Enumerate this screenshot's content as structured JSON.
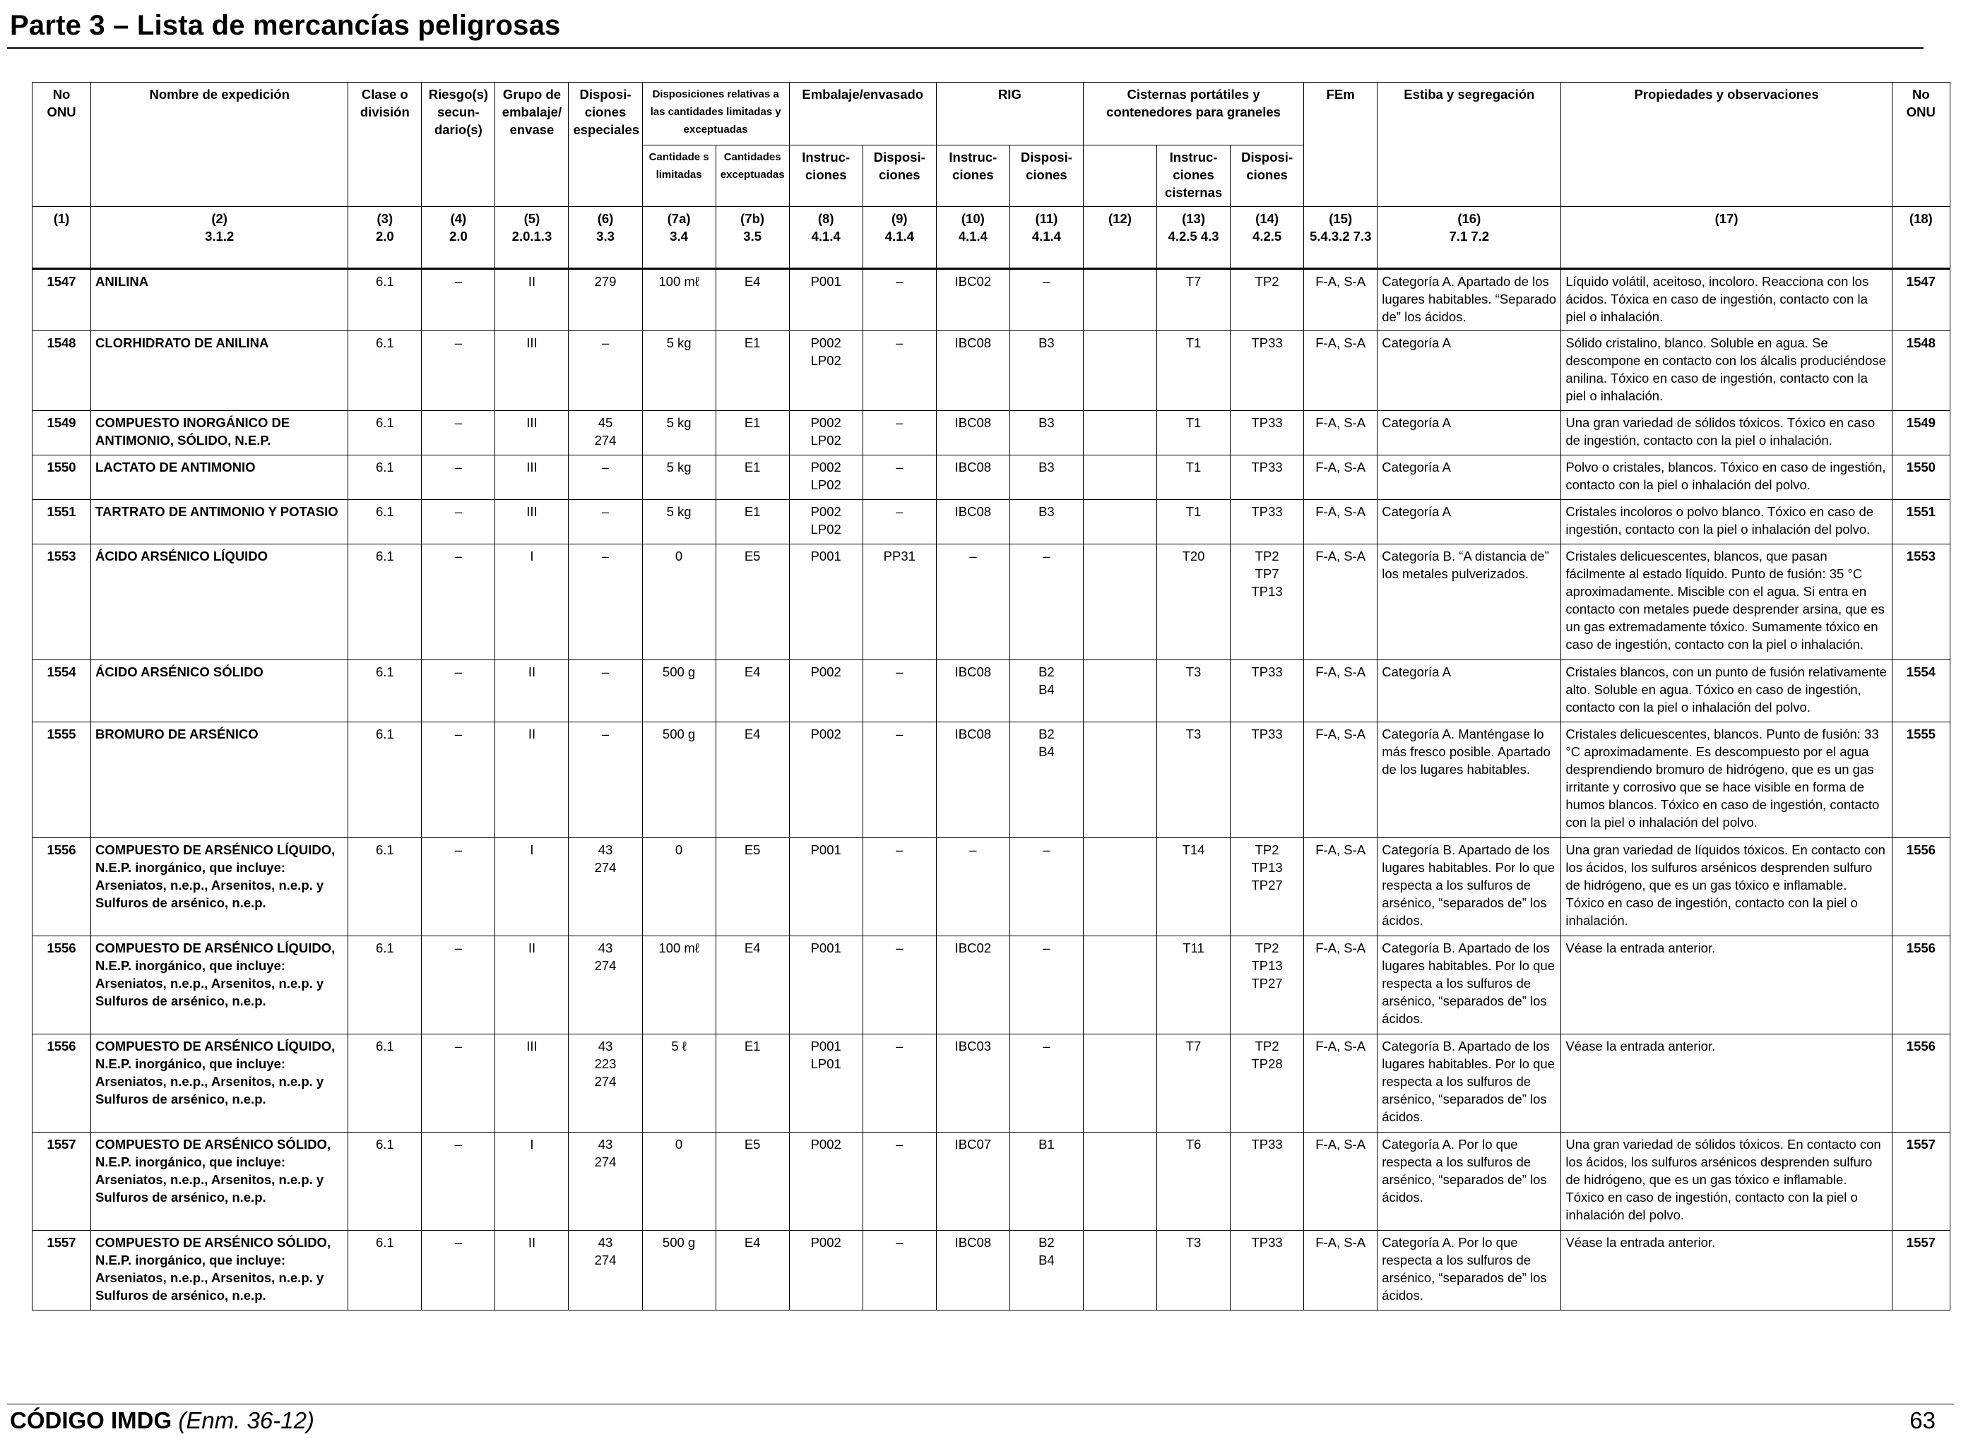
{
  "page": {
    "title": "Parte 3 – Lista de mercancías peligrosas",
    "footer_code": "CÓDIGO IMDG",
    "footer_amend": "(Enm. 36-12)",
    "page_number": "63"
  },
  "headers": {
    "un": "No ONU",
    "name": "Nombre de expedición",
    "class": "Clase o división",
    "subrisk": "Riesgo(s) secun- dario(s)",
    "pg": "Grupo de embalaje/ envase",
    "sp": "Disposi- ciones especiales",
    "limited_group": "Disposiciones relativas a las cantidades limitadas y exceptuadas",
    "limited_qty": "Cantidade s limitadas",
    "excepted_qty": "Cantidades exceptuadas",
    "packing_group": "Embalaje/envasado",
    "packing_instr": "Instruc- ciones",
    "packing_prov": "Disposi- ciones",
    "ibc_group": "RIG",
    "ibc_instr": "Instruc- ciones",
    "ibc_prov": "Disposi- ciones",
    "tank_group": "Cisternas portátiles y contenedores para graneles",
    "tank_instr": "Instruc- ciones cisternas",
    "tank_prov": "Disposi- ciones",
    "ems": "FEm",
    "stowage": "Estiba y segregación",
    "props": "Propiedades y observaciones",
    "un_end": "No ONU",
    "col_numbers": [
      {
        "n": "(1)",
        "ref": ""
      },
      {
        "n": "(2)",
        "ref": "3.1.2"
      },
      {
        "n": "(3)",
        "ref": "2.0"
      },
      {
        "n": "(4)",
        "ref": "2.0"
      },
      {
        "n": "(5)",
        "ref": "2.0.1.3"
      },
      {
        "n": "(6)",
        "ref": "3.3"
      },
      {
        "n": "(7a)",
        "ref": "3.4"
      },
      {
        "n": "(7b)",
        "ref": "3.5"
      },
      {
        "n": "(8)",
        "ref": "4.1.4"
      },
      {
        "n": "(9)",
        "ref": "4.1.4"
      },
      {
        "n": "(10)",
        "ref": "4.1.4"
      },
      {
        "n": "(11)",
        "ref": "4.1.4"
      },
      {
        "n": "(12)",
        "ref": ""
      },
      {
        "n": "(13)",
        "ref": "4.2.5 4.3"
      },
      {
        "n": "(14)",
        "ref": "4.2.5"
      },
      {
        "n": "(15)",
        "ref": "5.4.3.2 7.3"
      },
      {
        "n": "(16)",
        "ref": "7.1 7.2"
      },
      {
        "n": "(17)",
        "ref": ""
      },
      {
        "n": "(18)",
        "ref": ""
      }
    ]
  },
  "rows": [
    {
      "un": "1547",
      "name": "ANILINA",
      "cls": "6.1",
      "sub": "–",
      "pg": "II",
      "sp": "279",
      "lq": "100 mℓ",
      "eq": "E4",
      "pi": "P001",
      "pp": "–",
      "ibc": "IBC02",
      "ibcp": "–",
      "c12": "",
      "tank": "T7",
      "tankp": "TP2",
      "ems": "F-A, S-A",
      "stow": "Categoría A. Apartado de los lugares habitables. “Separado de” los ácidos.",
      "props": "Líquido volátil, aceitoso, incoloro. Reacciona con los ácidos. Tóxica en caso de ingestión, contacto con la piel o inhalación.",
      "un2": "1547",
      "h": "88"
    },
    {
      "un": "1548",
      "name": "CLORHIDRATO DE ANILINA",
      "cls": "6.1",
      "sub": "–",
      "pg": "III",
      "sp": "–",
      "lq": "5 kg",
      "eq": "E1",
      "pi": "P002\nLP02",
      "pp": "–",
      "ibc": "IBC08",
      "ibcp": "B3",
      "c12": "",
      "tank": "T1",
      "tankp": "TP33",
      "ems": "F-A, S-A",
      "stow": "Categoría A",
      "props": "Sólido cristalino, blanco. Soluble en agua. Se descompone en contacto con los álcalis produciéndose anilina. Tóxico en caso de ingestión, contacto con la piel o inhalación.",
      "un2": "1548",
      "h": "113"
    },
    {
      "un": "1549",
      "name": "COMPUESTO INORGÁNICO DE ANTIMONIO, SÓLIDO, N.E.P.",
      "cls": "6.1",
      "sub": "–",
      "pg": "III",
      "sp": "45\n274",
      "lq": "5 kg",
      "eq": "E1",
      "pi": "P002\nLP02",
      "pp": "–",
      "ibc": "IBC08",
      "ibcp": "B3",
      "c12": "",
      "tank": "T1",
      "tankp": "TP33",
      "ems": "F-A, S-A",
      "stow": "Categoría A",
      "props": "Una gran variedad de sólidos tóxicos. Tóxico en caso de ingestión, contacto con la piel o inhalación.",
      "un2": "1549",
      "h": "63"
    },
    {
      "un": "1550",
      "name": "LACTATO DE ANTIMONIO",
      "cls": "6.1",
      "sub": "–",
      "pg": "III",
      "sp": "–",
      "lq": "5 kg",
      "eq": "E1",
      "pi": "P002\nLP02",
      "pp": "–",
      "ibc": "IBC08",
      "ibcp": "B3",
      "c12": "",
      "tank": "T1",
      "tankp": "TP33",
      "ems": "F-A, S-A",
      "stow": "Categoría A",
      "props": "Polvo o cristales, blancos. Tóxico en caso de ingestión, contacto con la piel o inhalación del polvo.",
      "un2": "1550",
      "h": "63"
    },
    {
      "un": "1551",
      "name": "TARTRATO DE ANTIMONIO Y POTASIO",
      "cls": "6.1",
      "sub": "–",
      "pg": "III",
      "sp": "–",
      "lq": "5 kg",
      "eq": "E1",
      "pi": "P002\nLP02",
      "pp": "–",
      "ibc": "IBC08",
      "ibcp": "B3",
      "c12": "",
      "tank": "T1",
      "tankp": "TP33",
      "ems": "F-A, S-A",
      "stow": "Categoría A",
      "props": "Cristales incoloros o polvo blanco. Tóxico en caso de ingestión, contacto con la piel o inhalación del polvo.",
      "un2": "1551",
      "h": "63"
    },
    {
      "un": "1553",
      "name": "ÁCIDO ARSÉNICO LÍQUIDO",
      "cls": "6.1",
      "sub": "–",
      "pg": "I",
      "sp": "–",
      "lq": "0",
      "eq": "E5",
      "pi": "P001",
      "pp": "PP31",
      "ibc": "–",
      "ibcp": "–",
      "c12": "",
      "tank": "T20",
      "tankp": "TP2\nTP7\nTP13",
      "ems": "F-A, S-A",
      "stow": "Categoría B. “A distancia de” los metales pulverizados.",
      "props": "Cristales delicuescentes, blancos, que pasan fácilmente al estado líquido. Punto de fusión: 35 °C aproximadamente. Miscible con el agua. Si entra en contacto con metales puede desprender arsina, que es un gas extremadamente tóxico. Sumamente tóxico en caso de ingestión, contacto con la piel o inhalación.",
      "un2": "1553",
      "h": "164"
    },
    {
      "un": "1554",
      "name": "ÁCIDO ARSÉNICO SÓLIDO",
      "cls": "6.1",
      "sub": "–",
      "pg": "II",
      "sp": "–",
      "lq": "500 g",
      "eq": "E4",
      "pi": "P002",
      "pp": "–",
      "ibc": "IBC08",
      "ibcp": "B2\nB4",
      "c12": "",
      "tank": "T3",
      "tankp": "TP33",
      "ems": "F-A, S-A",
      "stow": "Categoría A",
      "props": "Cristales blancos, con un punto de fusión relativamente alto. Soluble en agua. Tóxico en caso de ingestión, contacto con la piel o inhalación del polvo.",
      "un2": "1554",
      "h": "88"
    },
    {
      "un": "1555",
      "name": "BROMURO DE ARSÉNICO",
      "cls": "6.1",
      "sub": "–",
      "pg": "II",
      "sp": "–",
      "lq": "500 g",
      "eq": "E4",
      "pi": "P002",
      "pp": "–",
      "ibc": "IBC08",
      "ibcp": "B2\nB4",
      "c12": "",
      "tank": "T3",
      "tankp": "TP33",
      "ems": "F-A, S-A",
      "stow": "Categoría A. Manténgase lo más fresco posible. Apartado de los lugares habitables.",
      "props": "Cristales delicuescentes, blancos. Punto de fusión: 33 °C aproximadamente. Es descompuesto por el agua desprendiendo bromuro de hidrógeno, que es un gas irritante y corrosivo que se hace visible en forma de humos blancos. Tóxico en caso de ingestión, contacto con la piel o inhalación del polvo.",
      "un2": "1555",
      "h": "164"
    },
    {
      "un": "1556",
      "name": "COMPUESTO DE ARSÉNICO LÍQUIDO, N.E.P. inorgánico, que incluye: Arseniatos, n.e.p., Arsenitos, n.e.p. y Sulfuros de arsénico, n.e.p.",
      "cls": "6.1",
      "sub": "–",
      "pg": "I",
      "sp": "43\n274",
      "lq": "0",
      "eq": "E5",
      "pi": "P001",
      "pp": "–",
      "ibc": "–",
      "ibcp": "–",
      "c12": "",
      "tank": "T14",
      "tankp": "TP2\nTP13\nTP27",
      "ems": "F-A, S-A",
      "stow": "Categoría B. Apartado de los lugares habitables. Por lo que respecta a los sulfuros de arsénico, “separados de” los ácidos.",
      "props": "Una gran variedad de líquidos tóxicos. En contacto con los ácidos, los sulfuros arsénicos desprenden sulfuro de hidrógeno, que es un gas tóxico e inflamable. Tóxico en caso de ingestión, contacto con la piel o inhalación.",
      "un2": "1556",
      "h": "139"
    },
    {
      "un": "1556",
      "name": "COMPUESTO DE ARSÉNICO LÍQUIDO, N.E.P. inorgánico, que incluye: Arseniatos, n.e.p., Arsenitos, n.e.p. y Sulfuros de arsénico, n.e.p.",
      "cls": "6.1",
      "sub": "–",
      "pg": "II",
      "sp": "43\n274",
      "lq": "100 mℓ",
      "eq": "E4",
      "pi": "P001",
      "pp": "–",
      "ibc": "IBC02",
      "ibcp": "–",
      "c12": "",
      "tank": "T11",
      "tankp": "TP2\nTP13\nTP27",
      "ems": "F-A, S-A",
      "stow": "Categoría B. Apartado de los lugares habitables. Por lo que respecta a los sulfuros de arsénico, “separados de” los ácidos.",
      "props": "Véase la entrada anterior.",
      "un2": "1556",
      "h": "139"
    },
    {
      "un": "1556",
      "name": "COMPUESTO DE ARSÉNICO LÍQUIDO, N.E.P. inorgánico, que incluye: Arseniatos, n.e.p., Arsenitos, n.e.p. y Sulfuros de arsénico, n.e.p.",
      "cls": "6.1",
      "sub": "–",
      "pg": "III",
      "sp": "43\n223\n274",
      "lq": "5 ℓ",
      "eq": "E1",
      "pi": "P001\nLP01",
      "pp": "–",
      "ibc": "IBC03",
      "ibcp": "–",
      "c12": "",
      "tank": "T7",
      "tankp": "TP2\nTP28",
      "ems": "F-A, S-A",
      "stow": "Categoría B. Apartado de los lugares habitables. Por lo que respecta a los sulfuros de arsénico, “separados de” los ácidos.",
      "props": "Véase la entrada anterior.",
      "un2": "1556",
      "h": "139"
    },
    {
      "un": "1557",
      "name": "COMPUESTO DE ARSÉNICO SÓLIDO, N.E.P. inorgánico, que incluye: Arseniatos, n.e.p., Arsenitos, n.e.p. y Sulfuros de arsénico, n.e.p.",
      "cls": "6.1",
      "sub": "–",
      "pg": "I",
      "sp": "43\n274",
      "lq": "0",
      "eq": "E5",
      "pi": "P002",
      "pp": "–",
      "ibc": "IBC07",
      "ibcp": "B1",
      "c12": "",
      "tank": "T6",
      "tankp": "TP33",
      "ems": "F-A, S-A",
      "stow": "Categoría A. Por lo que respecta a los sulfuros de arsénico, “separados de” los ácidos.",
      "props": "Una gran variedad de sólidos tóxicos. En contacto con los ácidos, los sulfuros arsénicos desprenden sulfuro de hidrógeno, que es un gas tóxico e inflamable. Tóxico en caso de ingestión, contacto con la piel o inhalación del polvo.",
      "un2": "1557",
      "h": "139"
    },
    {
      "un": "1557",
      "name": "COMPUESTO DE ARSÉNICO SÓLIDO, N.E.P. inorgánico, que incluye: Arseniatos, n.e.p., Arsenitos, n.e.p. y Sulfuros de arsénico, n.e.p.",
      "cls": "6.1",
      "sub": "–",
      "pg": "II",
      "sp": "43\n274",
      "lq": "500 g",
      "eq": "E4",
      "pi": "P002",
      "pp": "–",
      "ibc": "IBC08",
      "ibcp": "B2\nB4",
      "c12": "",
      "tank": "T3",
      "tankp": "TP33",
      "ems": "F-A, S-A",
      "stow": "Categoría A. Por lo que respecta a los sulfuros de arsénico, “separados de” los ácidos.",
      "props": "Véase la entrada anterior.",
      "un2": "1557",
      "h": "113"
    }
  ]
}
